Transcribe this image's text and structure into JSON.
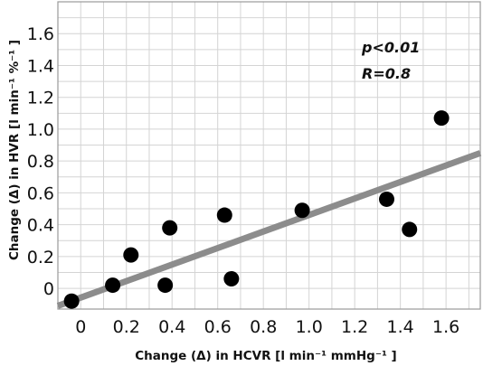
{
  "chart_data": {
    "type": "scatter",
    "xlabel": "Change (Δ) in HCVR [l min⁻¹ mmHg⁻¹ ]",
    "ylabel": "Change (Δ) in HVR [l min⁻¹ %⁻¹ ]",
    "xlim": [
      -0.1,
      1.75
    ],
    "ylim": [
      -0.13,
      1.8
    ],
    "x_ticks": [
      "0",
      "0.2",
      "0.4",
      "0.6",
      "0.8",
      "1.0",
      "1.2",
      "1.4",
      "1.6"
    ],
    "y_ticks": [
      "0",
      "0.2",
      "0.4",
      "0.6",
      "0.8",
      "1.0",
      "1.2",
      "1.4",
      "1.6"
    ],
    "grid": true,
    "points": [
      {
        "x": -0.04,
        "y": -0.08
      },
      {
        "x": 0.14,
        "y": 0.02
      },
      {
        "x": 0.22,
        "y": 0.21
      },
      {
        "x": 0.37,
        "y": 0.02
      },
      {
        "x": 0.39,
        "y": 0.38
      },
      {
        "x": 0.63,
        "y": 0.46
      },
      {
        "x": 0.66,
        "y": 0.06
      },
      {
        "x": 0.97,
        "y": 0.49
      },
      {
        "x": 1.34,
        "y": 0.56
      },
      {
        "x": 1.44,
        "y": 0.37
      },
      {
        "x": 1.58,
        "y": 1.07
      }
    ],
    "fit_line": {
      "x0": -0.1,
      "y0": -0.11,
      "x1": 1.75,
      "y1": 0.85
    },
    "annotations": [
      "p<0.01",
      "R=0.8"
    ],
    "colors": {
      "points": "#000000",
      "fit_line": "#8c8c8c",
      "grid": "#d4d4d4"
    }
  }
}
